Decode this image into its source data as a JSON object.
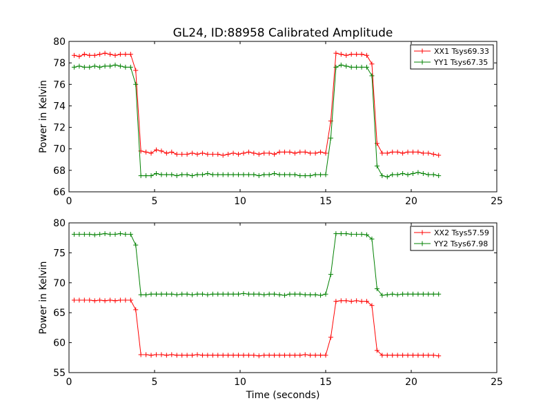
{
  "chart_data": [
    {
      "type": "line",
      "title": "GL24, ID:88958 Calibrated Amplitude",
      "xlabel": "",
      "ylabel": "Power in Kelvin",
      "xlim": [
        0,
        25
      ],
      "ylim": [
        66,
        80
      ],
      "xticks": [
        0,
        5,
        10,
        15,
        20,
        25
      ],
      "yticks": [
        66,
        68,
        70,
        72,
        74,
        76,
        78,
        80
      ],
      "legend_position": "top-right",
      "x": [
        0.3,
        0.6,
        0.9,
        1.2,
        1.5,
        1.8,
        2.1,
        2.4,
        2.7,
        3.0,
        3.3,
        3.6,
        3.9,
        4.2,
        4.5,
        4.8,
        5.1,
        5.4,
        5.7,
        6.0,
        6.3,
        6.6,
        6.9,
        7.2,
        7.5,
        7.8,
        8.1,
        8.4,
        8.7,
        9.0,
        9.3,
        9.6,
        9.9,
        10.2,
        10.5,
        10.8,
        11.1,
        11.4,
        11.7,
        12.0,
        12.3,
        12.6,
        12.9,
        13.2,
        13.5,
        13.8,
        14.1,
        14.4,
        14.7,
        15.0,
        15.3,
        15.6,
        15.9,
        16.2,
        16.5,
        16.8,
        17.1,
        17.4,
        17.7,
        18.0,
        18.3,
        18.6,
        18.9,
        19.2,
        19.5,
        19.8,
        20.1,
        20.4,
        20.7,
        21.0,
        21.3,
        21.6
      ],
      "series": [
        {
          "name": "XX1 Tsys69.33",
          "color": "#ff0000",
          "values": [
            78.7,
            78.6,
            78.8,
            78.7,
            78.7,
            78.8,
            78.9,
            78.8,
            78.7,
            78.8,
            78.8,
            78.8,
            77.3,
            69.8,
            69.7,
            69.6,
            69.9,
            69.8,
            69.6,
            69.7,
            69.5,
            69.5,
            69.5,
            69.6,
            69.5,
            69.6,
            69.5,
            69.5,
            69.5,
            69.4,
            69.5,
            69.6,
            69.5,
            69.6,
            69.7,
            69.6,
            69.5,
            69.6,
            69.6,
            69.5,
            69.7,
            69.7,
            69.7,
            69.6,
            69.7,
            69.7,
            69.6,
            69.6,
            69.7,
            69.6,
            72.6,
            78.9,
            78.8,
            78.7,
            78.8,
            78.8,
            78.8,
            78.7,
            77.9,
            70.5,
            69.6,
            69.6,
            69.7,
            69.7,
            69.6,
            69.7,
            69.7,
            69.7,
            69.6,
            69.6,
            69.5,
            69.4
          ]
        },
        {
          "name": "YY1 Tsys67.35",
          "color": "#008000",
          "values": [
            77.6,
            77.7,
            77.6,
            77.6,
            77.7,
            77.6,
            77.7,
            77.7,
            77.8,
            77.7,
            77.6,
            77.6,
            76.0,
            67.5,
            67.5,
            67.5,
            67.7,
            67.6,
            67.6,
            67.6,
            67.5,
            67.6,
            67.6,
            67.5,
            67.6,
            67.6,
            67.7,
            67.6,
            67.6,
            67.6,
            67.6,
            67.6,
            67.6,
            67.6,
            67.6,
            67.6,
            67.5,
            67.6,
            67.6,
            67.7,
            67.6,
            67.6,
            67.6,
            67.6,
            67.5,
            67.5,
            67.5,
            67.6,
            67.6,
            67.6,
            71.0,
            77.6,
            77.8,
            77.7,
            77.6,
            77.6,
            77.6,
            77.6,
            76.8,
            68.4,
            67.5,
            67.4,
            67.6,
            67.6,
            67.7,
            67.6,
            67.7,
            67.8,
            67.7,
            67.6,
            67.6,
            67.5
          ]
        }
      ]
    },
    {
      "type": "line",
      "title": "",
      "xlabel": "Time (seconds)",
      "ylabel": "Power in Kelvin",
      "xlim": [
        0,
        25
      ],
      "ylim": [
        55,
        80
      ],
      "xticks": [
        0,
        5,
        10,
        15,
        20,
        25
      ],
      "yticks": [
        55,
        60,
        65,
        70,
        75,
        80
      ],
      "legend_position": "top-right",
      "x": [
        0.3,
        0.6,
        0.9,
        1.2,
        1.5,
        1.8,
        2.1,
        2.4,
        2.7,
        3.0,
        3.3,
        3.6,
        3.9,
        4.2,
        4.5,
        4.8,
        5.1,
        5.4,
        5.7,
        6.0,
        6.3,
        6.6,
        6.9,
        7.2,
        7.5,
        7.8,
        8.1,
        8.4,
        8.7,
        9.0,
        9.3,
        9.6,
        9.9,
        10.2,
        10.5,
        10.8,
        11.1,
        11.4,
        11.7,
        12.0,
        12.3,
        12.6,
        12.9,
        13.2,
        13.5,
        13.8,
        14.1,
        14.4,
        14.7,
        15.0,
        15.3,
        15.6,
        15.9,
        16.2,
        16.5,
        16.8,
        17.1,
        17.4,
        17.7,
        18.0,
        18.3,
        18.6,
        18.9,
        19.2,
        19.5,
        19.8,
        20.1,
        20.4,
        20.7,
        21.0,
        21.3,
        21.6
      ],
      "series": [
        {
          "name": "XX2 Tsys57.59",
          "color": "#ff0000",
          "values": [
            67.1,
            67.1,
            67.1,
            67.1,
            67.0,
            67.1,
            67.0,
            67.1,
            67.0,
            67.1,
            67.1,
            67.1,
            65.5,
            58.0,
            58.0,
            57.9,
            58.0,
            58.0,
            57.9,
            58.0,
            57.9,
            57.9,
            57.9,
            57.9,
            58.0,
            57.9,
            57.9,
            57.9,
            57.9,
            57.9,
            57.9,
            57.9,
            57.9,
            57.9,
            57.9,
            57.9,
            57.8,
            57.9,
            57.9,
            57.9,
            57.9,
            57.9,
            57.9,
            57.9,
            57.9,
            58.0,
            57.9,
            57.9,
            57.9,
            57.9,
            60.9,
            66.9,
            67.0,
            67.0,
            66.9,
            67.0,
            66.9,
            66.9,
            66.2,
            58.7,
            57.9,
            57.9,
            57.9,
            57.9,
            57.9,
            57.9,
            57.9,
            57.9,
            57.9,
            57.9,
            57.9,
            57.8
          ]
        },
        {
          "name": "YY2 Tsys67.98",
          "color": "#008000",
          "values": [
            78.1,
            78.1,
            78.1,
            78.1,
            78.0,
            78.1,
            78.2,
            78.1,
            78.1,
            78.2,
            78.1,
            78.1,
            76.3,
            68.0,
            68.0,
            68.1,
            68.1,
            68.1,
            68.1,
            68.1,
            68.0,
            68.1,
            68.1,
            68.0,
            68.1,
            68.1,
            68.0,
            68.1,
            68.1,
            68.1,
            68.1,
            68.1,
            68.1,
            68.2,
            68.1,
            68.1,
            68.1,
            68.0,
            68.1,
            68.1,
            68.0,
            67.9,
            68.1,
            68.1,
            68.1,
            68.0,
            68.0,
            68.0,
            67.9,
            68.1,
            71.4,
            78.2,
            78.2,
            78.2,
            78.1,
            78.1,
            78.1,
            78.0,
            77.3,
            69.0,
            67.9,
            68.0,
            68.1,
            68.0,
            68.1,
            68.1,
            68.1,
            68.1,
            68.1,
            68.1,
            68.1,
            68.1
          ]
        }
      ]
    }
  ]
}
